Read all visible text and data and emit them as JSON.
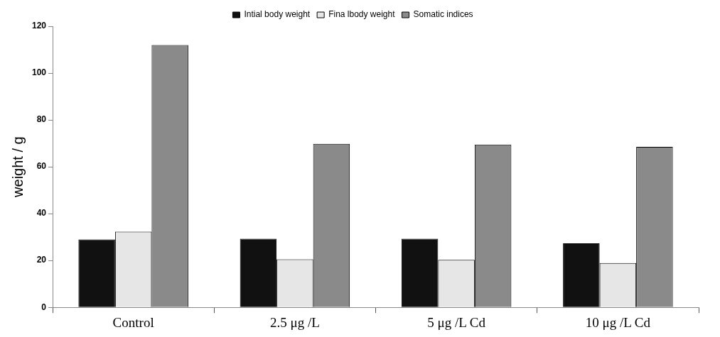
{
  "chart_data": {
    "type": "bar",
    "ylabel": "weight / g",
    "categories": [
      "Control",
      "2.5 μg /L",
      "5 μg /L Cd",
      "10 μg /L Cd"
    ],
    "series": [
      {
        "name": "Intial body weight",
        "color": "#111111",
        "values": [
          29,
          29.3,
          29.3,
          27.3
        ]
      },
      {
        "name": "Fina lbody weight",
        "color": "#e6e6e6",
        "values": [
          32.3,
          20.5,
          20.3,
          18.9
        ]
      },
      {
        "name": "Somatic indices",
        "color": "#8a8a8a",
        "values": [
          112,
          69.8,
          69.5,
          68.5
        ]
      }
    ],
    "ylim": [
      0,
      120
    ],
    "yticks": [
      0,
      20,
      40,
      60,
      80,
      100,
      120
    ],
    "grid": false,
    "legend": "top"
  }
}
